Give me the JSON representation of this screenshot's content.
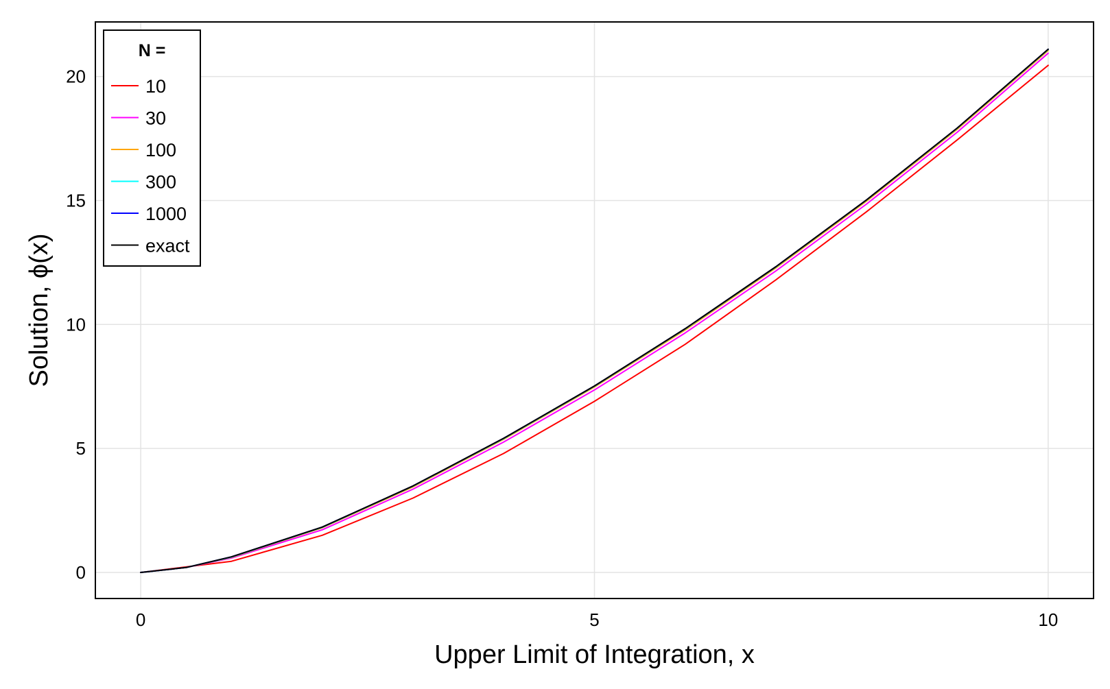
{
  "chart_data": {
    "type": "line",
    "title": "",
    "xlabel": "Upper Limit of Integration, x",
    "ylabel": "Solution, ϕ(x)",
    "xlim": [
      -0.5,
      10.5
    ],
    "ylim": [
      -1.05,
      22.2
    ],
    "xticks": [
      0,
      5,
      10
    ],
    "yticks": [
      0,
      5,
      10,
      15,
      20
    ],
    "grid": true,
    "legend": {
      "title": "N =",
      "placement": "top-left"
    },
    "series": [
      {
        "name": "10",
        "color": "#ff0000",
        "x": [
          0,
          1,
          2,
          3,
          4,
          5,
          6,
          7,
          8,
          9,
          10
        ],
        "y": [
          0,
          0.45,
          1.5,
          3.0,
          4.8,
          6.9,
          9.2,
          11.8,
          14.55,
          17.45,
          20.45
        ]
      },
      {
        "name": "30",
        "color": "#ff00ff",
        "x": [
          0,
          0.5,
          1,
          2,
          3,
          4,
          5,
          6,
          7,
          8,
          9,
          10
        ],
        "y": [
          0,
          0.2,
          0.58,
          1.72,
          3.36,
          5.26,
          7.36,
          9.66,
          12.16,
          14.86,
          17.76,
          20.94
        ]
      },
      {
        "name": "100",
        "color": "#ffa500",
        "x": [
          0,
          0.5,
          1,
          2,
          3,
          4,
          5,
          6,
          7,
          8,
          9,
          10
        ],
        "y": [
          0,
          0.2,
          0.61,
          1.8,
          3.45,
          5.37,
          7.48,
          9.78,
          12.28,
          14.98,
          17.88,
          21.05
        ]
      },
      {
        "name": "300",
        "color": "#00ffff",
        "x": [
          0,
          0.5,
          1,
          2,
          3,
          4,
          5,
          6,
          7,
          8,
          9,
          10
        ],
        "y": [
          0,
          0.2,
          0.62,
          1.82,
          3.48,
          5.4,
          7.51,
          9.82,
          12.32,
          15.02,
          17.92,
          21.09
        ]
      },
      {
        "name": "1000",
        "color": "#0000ff",
        "x": [
          0,
          0.5,
          1,
          2,
          3,
          4,
          5,
          6,
          7,
          8,
          9,
          10
        ],
        "y": [
          0,
          0.2,
          0.63,
          1.83,
          3.49,
          5.41,
          7.52,
          9.83,
          12.33,
          15.03,
          17.93,
          21.1
        ]
      },
      {
        "name": "exact",
        "color": "#000000",
        "x": [
          0,
          0.5,
          1,
          2,
          3,
          4,
          5,
          6,
          7,
          8,
          9,
          10
        ],
        "y": [
          0,
          0.2,
          0.63,
          1.83,
          3.49,
          5.41,
          7.52,
          9.83,
          12.33,
          15.03,
          17.93,
          21.1
        ]
      }
    ]
  }
}
